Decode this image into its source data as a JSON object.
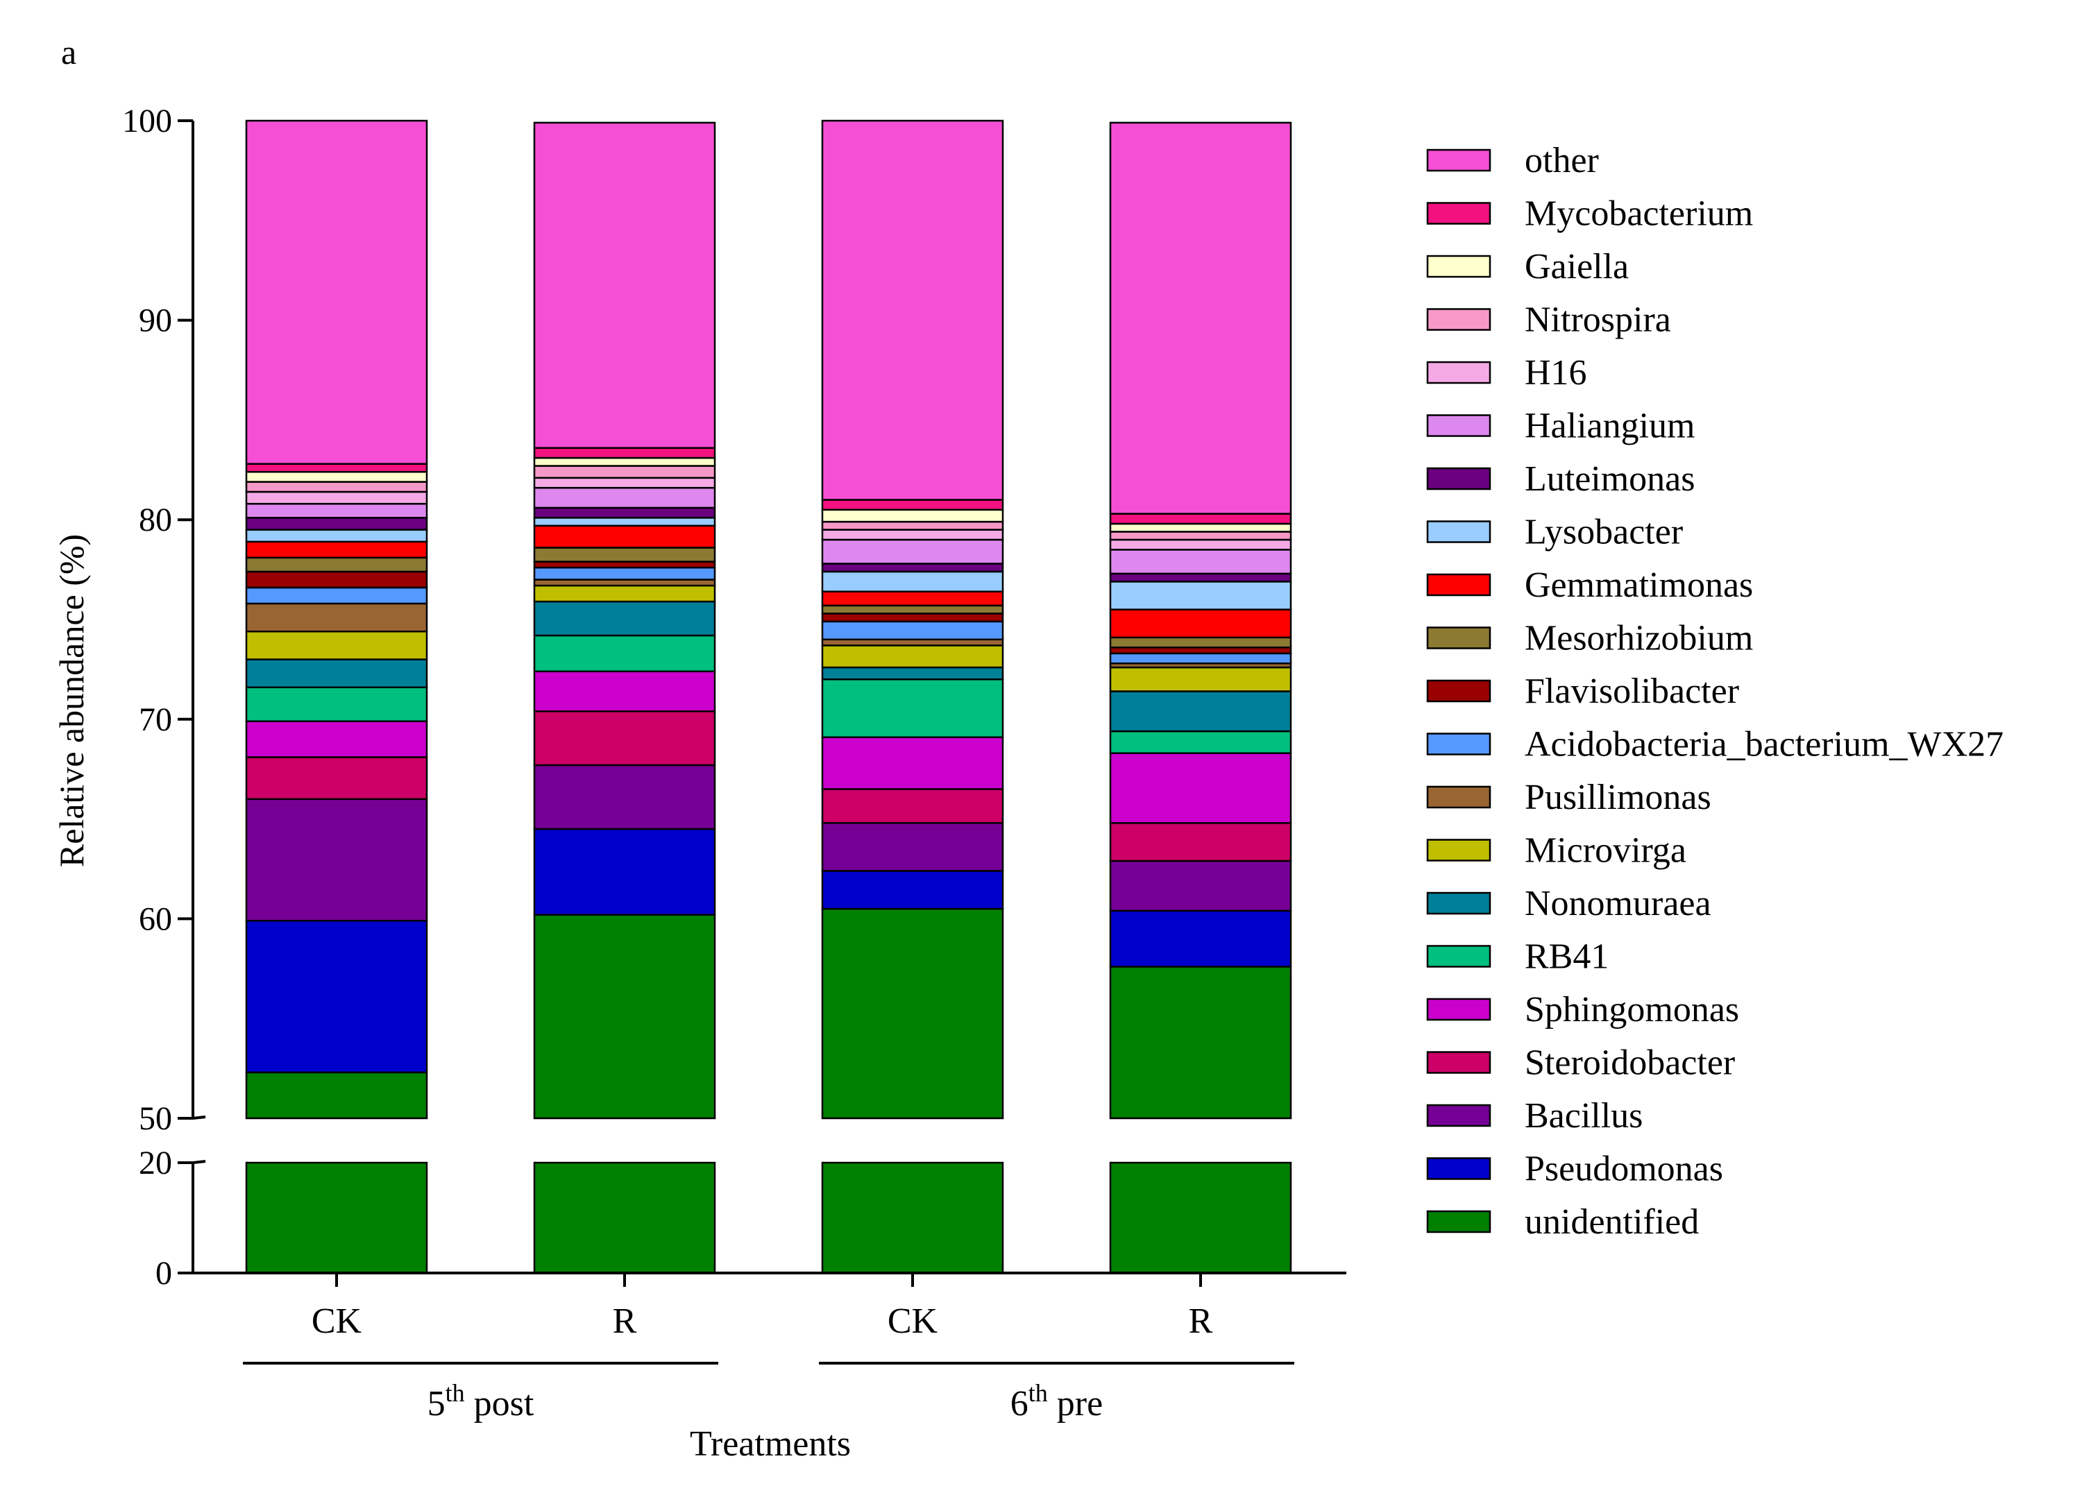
{
  "chart_data": {
    "type": "bar",
    "stacked": true,
    "panel_label": "a",
    "title": "",
    "xlabel": "Treatments",
    "ylabel": "Relative abundance (%)",
    "ylim": [
      0,
      100
    ],
    "axis_break": [
      20,
      50
    ],
    "yticks_lower": [
      0,
      20
    ],
    "yticks_upper": [
      50,
      60,
      70,
      80,
      90,
      100
    ],
    "categories": [
      "CK",
      "R",
      "CK",
      "R"
    ],
    "groups": [
      {
        "label_base": "5",
        "label_sup": "th",
        "label_rest": " post",
        "categories": [
          0,
          1
        ]
      },
      {
        "label_base": "6",
        "label_sup": "th",
        "label_rest": " pre",
        "categories": [
          2,
          3
        ]
      }
    ],
    "legend_position": "right",
    "series": [
      {
        "name": "unidentified",
        "color": "#008000",
        "values": [
          52.3,
          60.2,
          60.5,
          57.6
        ]
      },
      {
        "name": "Pseudomonas",
        "color": "#0000CC",
        "values": [
          7.6,
          4.3,
          1.9,
          2.8
        ]
      },
      {
        "name": "Bacillus",
        "color": "#760096",
        "values": [
          6.1,
          3.2,
          2.4,
          2.5
        ]
      },
      {
        "name": "Steroidobacter",
        "color": "#CC0066",
        "values": [
          2.1,
          2.7,
          1.7,
          1.9
        ]
      },
      {
        "name": "Sphingomonas",
        "color": "#CC00CC",
        "values": [
          1.8,
          2.0,
          2.6,
          3.5
        ]
      },
      {
        "name": "RB41",
        "color": "#00BF7F",
        "values": [
          1.7,
          1.8,
          2.9,
          1.1
        ]
      },
      {
        "name": "Nonomuraea",
        "color": "#007F99",
        "values": [
          1.4,
          1.7,
          0.6,
          2.0
        ]
      },
      {
        "name": "Microvirga",
        "color": "#BFBF00",
        "values": [
          1.4,
          0.8,
          1.1,
          1.2
        ]
      },
      {
        "name": "Pusillimonas",
        "color": "#996633",
        "values": [
          1.4,
          0.3,
          0.3,
          0.2
        ]
      },
      {
        "name": "Acidobacteria_bacterium_WX27",
        "color": "#5599FF",
        "values": [
          0.8,
          0.6,
          0.9,
          0.5
        ]
      },
      {
        "name": "Flavisolibacter",
        "color": "#990000",
        "values": [
          0.8,
          0.3,
          0.4,
          0.3
        ]
      },
      {
        "name": "Mesorhizobium",
        "color": "#8C7A33",
        "values": [
          0.7,
          0.7,
          0.4,
          0.5
        ]
      },
      {
        "name": "Gemmatimonas",
        "color": "#FF0000",
        "values": [
          0.8,
          1.1,
          0.7,
          1.4
        ]
      },
      {
        "name": "Lysobacter",
        "color": "#99CCFF",
        "values": [
          0.6,
          0.4,
          1.0,
          1.4
        ]
      },
      {
        "name": "Luteimonas",
        "color": "#6A0080",
        "values": [
          0.6,
          0.5,
          0.4,
          0.4
        ]
      },
      {
        "name": "Haliangium",
        "color": "#DD88EE",
        "values": [
          0.7,
          1.0,
          1.2,
          1.2
        ]
      },
      {
        "name": "H16",
        "color": "#F5AAE6",
        "values": [
          0.6,
          0.5,
          0.5,
          0.5
        ]
      },
      {
        "name": "Nitrospira",
        "color": "#F799C8",
        "values": [
          0.5,
          0.6,
          0.4,
          0.4
        ]
      },
      {
        "name": "Gaiella",
        "color": "#FFFFCC",
        "values": [
          0.5,
          0.4,
          0.6,
          0.4
        ]
      },
      {
        "name": "Mycobacterium",
        "color": "#F2117F",
        "values": [
          0.4,
          0.5,
          0.5,
          0.5
        ]
      },
      {
        "name": "other",
        "color": "#F54FD6",
        "values": [
          17.4,
          16.3,
          19.0,
          19.6
        ]
      }
    ]
  }
}
